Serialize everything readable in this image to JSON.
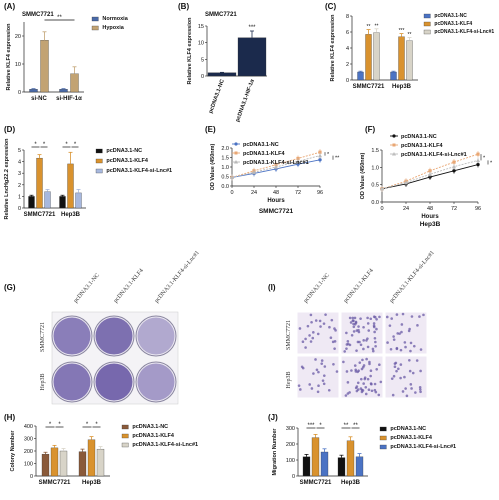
{
  "colors": {
    "normoxia": "#4a6aa8",
    "hypoxia": "#c2a373",
    "nc": "#1b2a4c",
    "klf4": "#d9922e",
    "klf4_lnc": "#d8d4c8",
    "nc_d": "#111111",
    "klf4_lnc_d": "#a7b8de",
    "line_nc": "#4b73c4",
    "line_klf4": "#e9a774",
    "line_klf4_lnc": "#b8b8b8",
    "line_nc_f": "#111111",
    "line_lnc_f": "#bdbdbd",
    "stain": "#6a5aa5",
    "well_bg": "#ece9f2",
    "field_bg": "#efe9f4"
  },
  "panels": {
    "a": {
      "letter": "(A)",
      "title": "SMMC7721",
      "ylabel": "Relative KLF4 expression",
      "sig": "**"
    },
    "b": {
      "letter": "(B)",
      "title": "SMMC7721",
      "ylabel": "Relative KLF4 expression",
      "sig": "***"
    },
    "c": {
      "letter": "(C)",
      "ylabel": "Relative KLF4 expression"
    },
    "d": {
      "letter": "(D)",
      "ylabel": "Relative LncHg22.2 expression"
    },
    "e": {
      "letter": "(E)",
      "ylabel": "OD Value (450nm)",
      "xlabel": "Hours",
      "subtitle": "SMMC7721"
    },
    "f": {
      "letter": "(F)",
      "ylabel": "OD Value (450nm)",
      "xlabel": "Hours",
      "subtitle": "Hep3B"
    },
    "g": {
      "letter": "(G)",
      "cols": [
        "pcDNA3.1-NC",
        "pcDNA3.1-KLF4",
        "pcDNA3.1-KLF4-si-Lnc#1"
      ],
      "rows": [
        "SMMC7721",
        "Hep3B"
      ]
    },
    "h": {
      "letter": "(H)",
      "ylabel": "Colony Number"
    },
    "i": {
      "letter": "(I)",
      "cols": [
        "pcDNA3.1-NC",
        "pcDNA3.1-KLF4",
        "pcDNA3.1-KLF4-si-Lnc#1"
      ],
      "rows": [
        "SMMC7721",
        "Hep3B"
      ]
    },
    "j": {
      "letter": "(J)",
      "ylabel": "Migration Number"
    }
  },
  "chart_data": [
    {
      "panel": "A",
      "type": "bar",
      "title": "SMMC7721",
      "categories": [
        "si-NC",
        "si-HIF-1α"
      ],
      "series": [
        {
          "name": "Normoxia",
          "values": [
            1,
            1
          ]
        },
        {
          "name": "Hypoxia",
          "values": [
            18.5,
            6.5
          ]
        }
      ],
      "errors": [
        [
          0.2,
          0.2
        ],
        [
          3,
          2.5
        ]
      ],
      "ylabel": "Relative KLF4 expression",
      "ylim": [
        0,
        25
      ],
      "yticks": [
        0,
        10,
        20
      ],
      "legend": "top-right",
      "annotations": [
        "**"
      ]
    },
    {
      "panel": "B",
      "type": "bar",
      "title": "SMMC7721",
      "categories": [
        "pcDNA3.1-NC",
        "pcDNA3.1-HIF-1α"
      ],
      "values": [
        1,
        11.5
      ],
      "errors": [
        0.1,
        2
      ],
      "ylabel": "Relative KLF4 expression",
      "ylim": [
        0,
        15
      ],
      "yticks": [
        0,
        5,
        10,
        15
      ],
      "annotations": [
        "***"
      ]
    },
    {
      "panel": "C",
      "type": "bar",
      "categories": [
        "SMMC7721",
        "Hep3B"
      ],
      "series": [
        {
          "name": "pcDNA3.1-NC",
          "values": [
            1,
            1
          ]
        },
        {
          "name": "pcDNA3.1-KLF4",
          "values": [
            5.7,
            5.4
          ]
        },
        {
          "name": "pcDNA3.1-KLF4-si-Lnc#1",
          "values": [
            5.9,
            4.9
          ]
        }
      ],
      "errors": [
        [
          0.1,
          0.1
        ],
        [
          0.6,
          0.4
        ],
        [
          0.5,
          0.4
        ]
      ],
      "ylabel": "Relative KLF4 expression",
      "ylim": [
        0,
        8
      ],
      "yticks": [
        0,
        2,
        4,
        6,
        8
      ],
      "legend": "top-right",
      "annotations": [
        "**",
        "**",
        "***",
        "**"
      ]
    },
    {
      "panel": "D",
      "type": "bar",
      "categories": [
        "SMMC7721",
        "Hep3B"
      ],
      "series": [
        {
          "name": "pcDNA3.1-NC",
          "values": [
            1,
            1
          ]
        },
        {
          "name": "pcDNA3.1-KLF4",
          "values": [
            4.3,
            3.8
          ]
        },
        {
          "name": "pcDNA3.1-KLF4-si-Lnc#1",
          "values": [
            1.4,
            1.3
          ]
        }
      ],
      "errors": [
        [
          0.1,
          0.1
        ],
        [
          0.3,
          1.0
        ],
        [
          0.2,
          0.3
        ]
      ],
      "ylabel": "Relative LncHg22.2 expression",
      "ylim": [
        0,
        5
      ],
      "yticks": [
        0,
        1,
        2,
        3,
        4,
        5
      ],
      "legend": "top-right",
      "annotations": [
        "*",
        "*",
        "*",
        "*"
      ]
    },
    {
      "panel": "E",
      "type": "line",
      "subtitle": "SMMC7721",
      "x": [
        0,
        24,
        48,
        72,
        96
      ],
      "series": [
        {
          "name": "pcDNA3.1-NC",
          "values": [
            0.45,
            0.66,
            0.9,
            1.15,
            1.38
          ]
        },
        {
          "name": "pcDNA3.1-KLF4",
          "values": [
            0.45,
            0.8,
            1.12,
            1.45,
            1.78
          ]
        },
        {
          "name": "pcDNA3.1-KLF4-si-Lnc#1",
          "values": [
            0.45,
            0.72,
            1.0,
            1.3,
            1.6
          ]
        }
      ],
      "xlabel": "Hours",
      "ylabel": "OD Value (450nm)",
      "ylim": [
        0,
        2.0
      ],
      "yticks": [
        0,
        0.5,
        1.0,
        1.5,
        2.0
      ],
      "xticks": [
        0,
        24,
        48,
        72,
        96
      ],
      "legend": "top-left",
      "annotations": [
        "*",
        "**"
      ]
    },
    {
      "panel": "F",
      "type": "line",
      "subtitle": "Hep3B",
      "x": [
        0,
        24,
        48,
        72,
        96
      ],
      "series": [
        {
          "name": "pcDNA3.1-NC",
          "values": [
            0.38,
            0.52,
            0.72,
            0.9,
            1.08
          ]
        },
        {
          "name": "pcDNA3.1-KLF4",
          "values": [
            0.38,
            0.6,
            0.9,
            1.15,
            1.38
          ]
        },
        {
          "name": "pcDNA3.1-KLF4-si-Lnc#1",
          "values": [
            0.38,
            0.56,
            0.8,
            1.02,
            1.2
          ]
        }
      ],
      "xlabel": "Hours",
      "ylabel": "OD Value (450nm)",
      "ylim": [
        0,
        1.5
      ],
      "yticks": [
        0,
        0.5,
        1.0,
        1.5
      ],
      "xticks": [
        0,
        24,
        48,
        72,
        96
      ],
      "legend": "top-left",
      "annotations": [
        "*",
        "*"
      ]
    },
    {
      "panel": "H",
      "type": "bar",
      "categories": [
        "SMMC7721",
        "Hep3B"
      ],
      "series": [
        {
          "name": "pcDNA3.1-NC",
          "values": [
            175,
            195
          ]
        },
        {
          "name": "pcDNA3.1-KLF4",
          "values": [
            225,
            290
          ]
        },
        {
          "name": "pcDNA3.1-KLF4-si-Lnc#1",
          "values": [
            200,
            215
          ]
        }
      ],
      "errors": [
        [
          15,
          20
        ],
        [
          20,
          25
        ],
        [
          20,
          20
        ]
      ],
      "ylabel": "Colony Number",
      "ylim": [
        0,
        400
      ],
      "yticks": [
        0,
        100,
        200,
        300,
        400
      ],
      "legend": "top-right",
      "annotations": [
        "*",
        "*",
        "*",
        "*"
      ]
    },
    {
      "panel": "J",
      "type": "bar",
      "categories": [
        "SMMC7721",
        "Hep3B"
      ],
      "series": [
        {
          "name": "pcDNA3.1-NC",
          "values": [
            120,
            115
          ]
        },
        {
          "name": "pcDNA3.1-KLF4",
          "values": [
            240,
            220
          ]
        },
        {
          "name": "pcDNA3.1-KLF4-si-Lnc#1",
          "values": [
            150,
            120
          ]
        }
      ],
      "errors": [
        [
          15,
          15
        ],
        [
          20,
          25
        ],
        [
          20,
          20
        ]
      ],
      "ylabel": "Migration Number",
      "ylim": [
        0,
        300
      ],
      "yticks": [
        0,
        100,
        200,
        300
      ],
      "legend": "top-right",
      "annotations": [
        "***",
        "*",
        "**",
        "**"
      ]
    }
  ]
}
